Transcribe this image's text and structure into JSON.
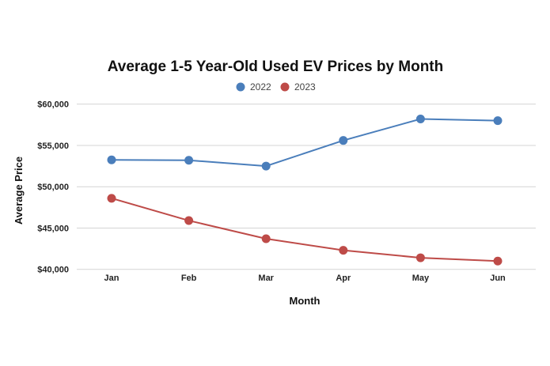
{
  "chart_data": {
    "type": "line",
    "title": "Average 1-5 Year-Old Used EV Prices by Month",
    "xlabel": "Month",
    "ylabel": "Average Price",
    "categories": [
      "Jan",
      "Feb",
      "Mar",
      "Apr",
      "May",
      "Jun"
    ],
    "ylim": [
      40000,
      60000
    ],
    "yticks": [
      40000,
      45000,
      50000,
      55000,
      60000
    ],
    "ytick_labels": [
      "$40,000",
      "$45,000",
      "$50,000",
      "$55,000",
      "$60,000"
    ],
    "grid": true,
    "legend_position": "top-center",
    "series": [
      {
        "name": "2022",
        "color": "#4a7ebb",
        "values": [
          53250,
          53200,
          52500,
          55600,
          58200,
          58000
        ]
      },
      {
        "name": "2023",
        "color": "#be4b48",
        "values": [
          48600,
          45900,
          43700,
          42300,
          41400,
          41000
        ]
      }
    ]
  }
}
